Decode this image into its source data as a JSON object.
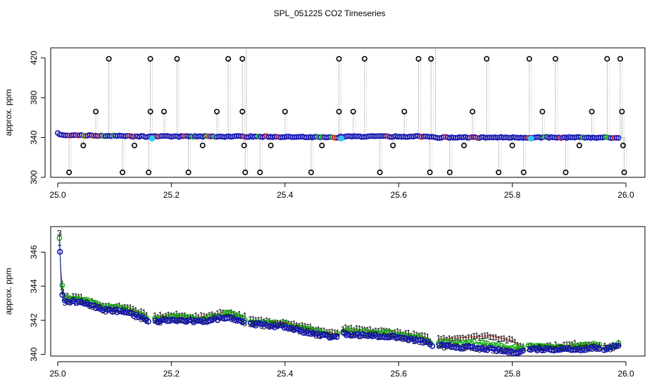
{
  "figure_title": "SPL_051225  CO2 Timeseries",
  "chart_data": [
    {
      "type": "scatter",
      "panel": "top",
      "title": "",
      "xlabel": "",
      "ylabel": "approx. ppm",
      "xlim": [
        25.0,
        26.0
      ],
      "ylim": [
        300,
        430
      ],
      "xticks": [
        "25.0",
        "25.2",
        "25.4",
        "25.6",
        "25.8",
        "26.0"
      ],
      "yticks": [
        "300",
        "340",
        "380",
        "420"
      ],
      "grid": false,
      "legend": "none",
      "baseline": {
        "x": [
          25.0,
          25.01,
          25.05,
          25.16,
          25.17,
          25.33,
          25.34,
          25.49,
          25.5,
          25.66,
          25.67,
          25.82,
          25.83,
          25.99
        ],
        "y": [
          344,
          342,
          342,
          341,
          341,
          341,
          341,
          340,
          341,
          341,
          340,
          340,
          340,
          340
        ]
      },
      "outliers_high": {
        "x": [
          25.09,
          25.163,
          25.21,
          25.3,
          25.325,
          25.495,
          25.54,
          25.635,
          25.657,
          25.755,
          25.83,
          25.876,
          25.967,
          25.99
        ],
        "y": 419
      },
      "outliers_low": {
        "x": [
          25.02,
          25.114,
          25.16,
          25.23,
          25.33,
          25.356,
          25.446,
          25.567,
          25.655,
          25.69,
          25.776,
          25.82,
          25.894,
          25.997
        ],
        "y": 305
      },
      "outliers_mid_high": {
        "x": [
          25.067,
          25.163,
          25.187,
          25.28,
          25.325,
          25.4,
          25.495,
          25.52,
          25.61,
          25.73,
          25.853,
          25.94,
          25.993
        ],
        "y": 366
      },
      "outliers_mid_low": {
        "x": [
          25.045,
          25.135,
          25.255,
          25.328,
          25.375,
          25.465,
          25.59,
          25.715,
          25.8,
          25.918,
          25.995
        ],
        "y": 332
      },
      "cyan_points": {
        "x": [
          25.166,
          25.499,
          25.833
        ],
        "y": [
          339,
          339,
          339
        ]
      }
    },
    {
      "type": "scatter",
      "panel": "bottom",
      "title": "",
      "xlabel": "",
      "ylabel": "approx. ppm",
      "xlim": [
        25.0,
        26.0
      ],
      "ylim": [
        339.9,
        347.5
      ],
      "xticks": [
        "25.0",
        "25.2",
        "25.4",
        "25.6",
        "25.8",
        "26.0"
      ],
      "yticks": [
        "340",
        "342",
        "344",
        "346"
      ],
      "grid": false,
      "legend": "none",
      "marker_labels": [
        "1",
        "3"
      ],
      "series": [
        {
          "name": "1",
          "marker": "1",
          "color": "#e02020",
          "x": [
            25.003,
            25.006,
            25.01,
            25.04,
            25.08,
            25.12,
            25.15,
            25.16,
            25.2,
            25.25,
            25.3,
            25.33,
            25.34,
            25.4,
            25.45,
            25.49,
            25.5,
            25.55,
            25.6,
            25.65,
            25.66,
            25.67,
            25.72,
            25.76,
            25.8,
            25.82,
            25.83,
            25.88,
            25.92,
            25.95,
            25.96,
            25.99
          ],
          "y": [
            346.5,
            344.8,
            343.4,
            343.3,
            342.8,
            342.8,
            342.4,
            342.2,
            342.3,
            342.2,
            342.5,
            342.2,
            342.0,
            341.9,
            341.5,
            341.2,
            341.5,
            341.4,
            341.3,
            341.0,
            340.7,
            340.9,
            341.0,
            341.1,
            340.8,
            340.4,
            340.5,
            340.5,
            340.6,
            340.6,
            340.4,
            340.6
          ]
        },
        {
          "name": "2",
          "marker": "o",
          "color": "#20b020",
          "x": [
            25.003,
            25.006,
            25.01,
            25.04,
            25.08,
            25.12,
            25.15,
            25.16,
            25.2,
            25.25,
            25.3,
            25.33,
            25.34,
            25.4,
            25.45,
            25.49,
            25.5,
            25.55,
            25.6,
            25.65,
            25.66,
            25.67,
            25.72,
            25.76,
            25.8,
            25.82,
            25.83,
            25.88,
            25.92,
            25.95,
            25.96,
            25.99
          ],
          "y": [
            346.8,
            344.6,
            343.3,
            343.3,
            342.8,
            342.7,
            342.3,
            342.1,
            342.2,
            342.1,
            342.4,
            342.1,
            341.9,
            341.8,
            341.4,
            341.1,
            341.4,
            341.3,
            341.2,
            340.9,
            340.6,
            340.7,
            340.7,
            340.6,
            340.4,
            340.3,
            340.5,
            340.4,
            340.5,
            340.6,
            340.4,
            340.6
          ]
        },
        {
          "name": "3",
          "marker": "3",
          "color": "#1a1ab4",
          "x": [
            25.003,
            25.006,
            25.01,
            25.04,
            25.08,
            25.12,
            25.15,
            25.16,
            25.2,
            25.25,
            25.3,
            25.33,
            25.34,
            25.4,
            25.45,
            25.49,
            25.5,
            25.55,
            25.6,
            25.65,
            25.66,
            25.67,
            25.72,
            25.76,
            25.8,
            25.82,
            25.83,
            25.88,
            25.92,
            25.95,
            25.96,
            25.99
          ],
          "y": [
            347.1,
            344.1,
            343.1,
            343.1,
            342.6,
            342.5,
            342.1,
            341.9,
            342.0,
            341.9,
            342.2,
            341.9,
            341.8,
            341.6,
            341.2,
            341.0,
            341.2,
            341.1,
            341.0,
            340.7,
            340.5,
            340.5,
            340.4,
            340.3,
            340.1,
            340.2,
            340.3,
            340.3,
            340.3,
            340.4,
            340.3,
            340.5
          ]
        }
      ]
    }
  ]
}
